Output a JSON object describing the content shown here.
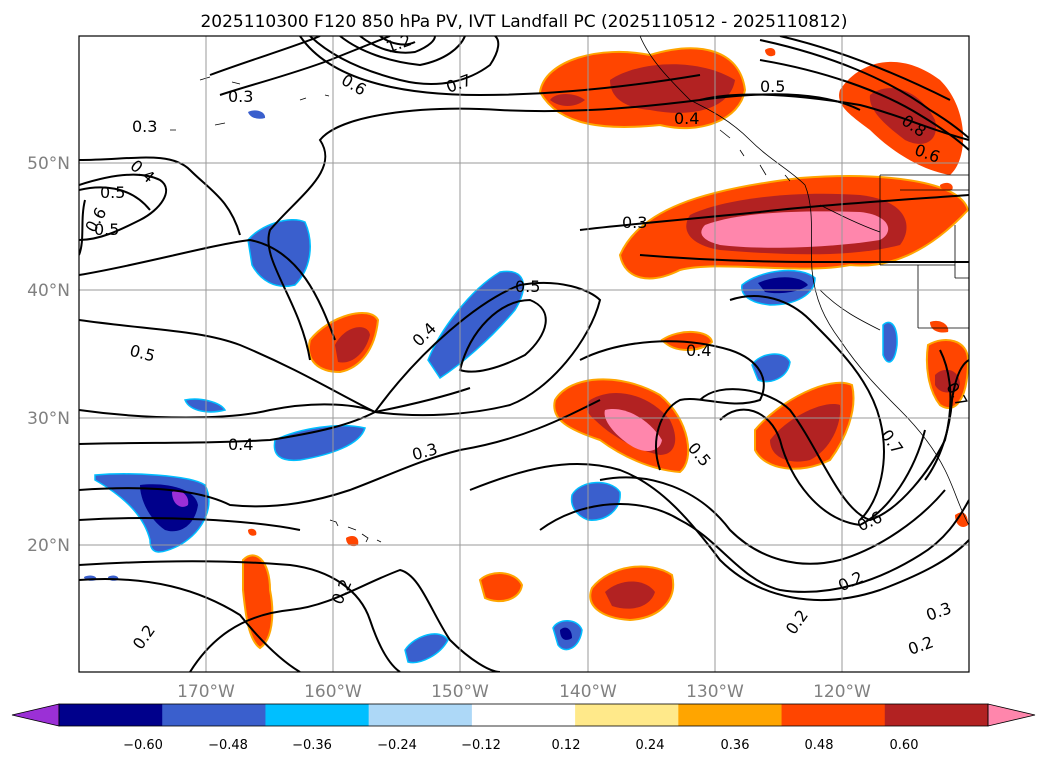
{
  "title": "2025110300 F120 850 hPa PV, IVT Landfall PC (2025110512 - 2025110812)",
  "map": {
    "lon_range": [
      -180,
      -110
    ],
    "lat_range": [
      10,
      60
    ],
    "lon_ticks": [
      {
        "value": -170,
        "label": "170°W"
      },
      {
        "value": -160,
        "label": "160°W"
      },
      {
        "value": -150,
        "label": "150°W"
      },
      {
        "value": -140,
        "label": "140°W"
      },
      {
        "value": -130,
        "label": "130°W"
      },
      {
        "value": -120,
        "label": "120°W"
      }
    ],
    "lat_ticks": [
      {
        "value": 20,
        "label": "20°N"
      },
      {
        "value": 30,
        "label": "30°N"
      },
      {
        "value": 40,
        "label": "40°N"
      },
      {
        "value": 50,
        "label": "50°N"
      }
    ],
    "gridlines": true,
    "contour_labels": [
      "0.3",
      "0.3",
      "0.4",
      "0.5",
      "0.6",
      "0.7",
      "0.6",
      "0.5",
      "0.4",
      "0.5",
      "0.4",
      "0.3",
      "0.5",
      "0.4",
      "0.4",
      "0.3",
      "0.5",
      "0.7",
      "0.6",
      "0.2",
      "0.2",
      "0.2",
      "0.3",
      "0.2",
      "0.2",
      "0.5",
      "0.8",
      "0.6",
      "1.2",
      "0.7"
    ]
  },
  "colorbar": {
    "tick_labels": [
      "−0.60",
      "−0.48",
      "−0.36",
      "−0.24",
      "−0.12",
      "0.12",
      "0.24",
      "0.36",
      "0.48",
      "0.60"
    ],
    "colors": [
      "#9b30d6",
      "#00008b",
      "#3a5fcd",
      "#00bfff",
      "#add8f7",
      "#ffffff",
      "#ffe98a",
      "#ffa500",
      "#ff4500",
      "#b22222",
      "#ff86ac"
    ],
    "extend": "both"
  }
}
